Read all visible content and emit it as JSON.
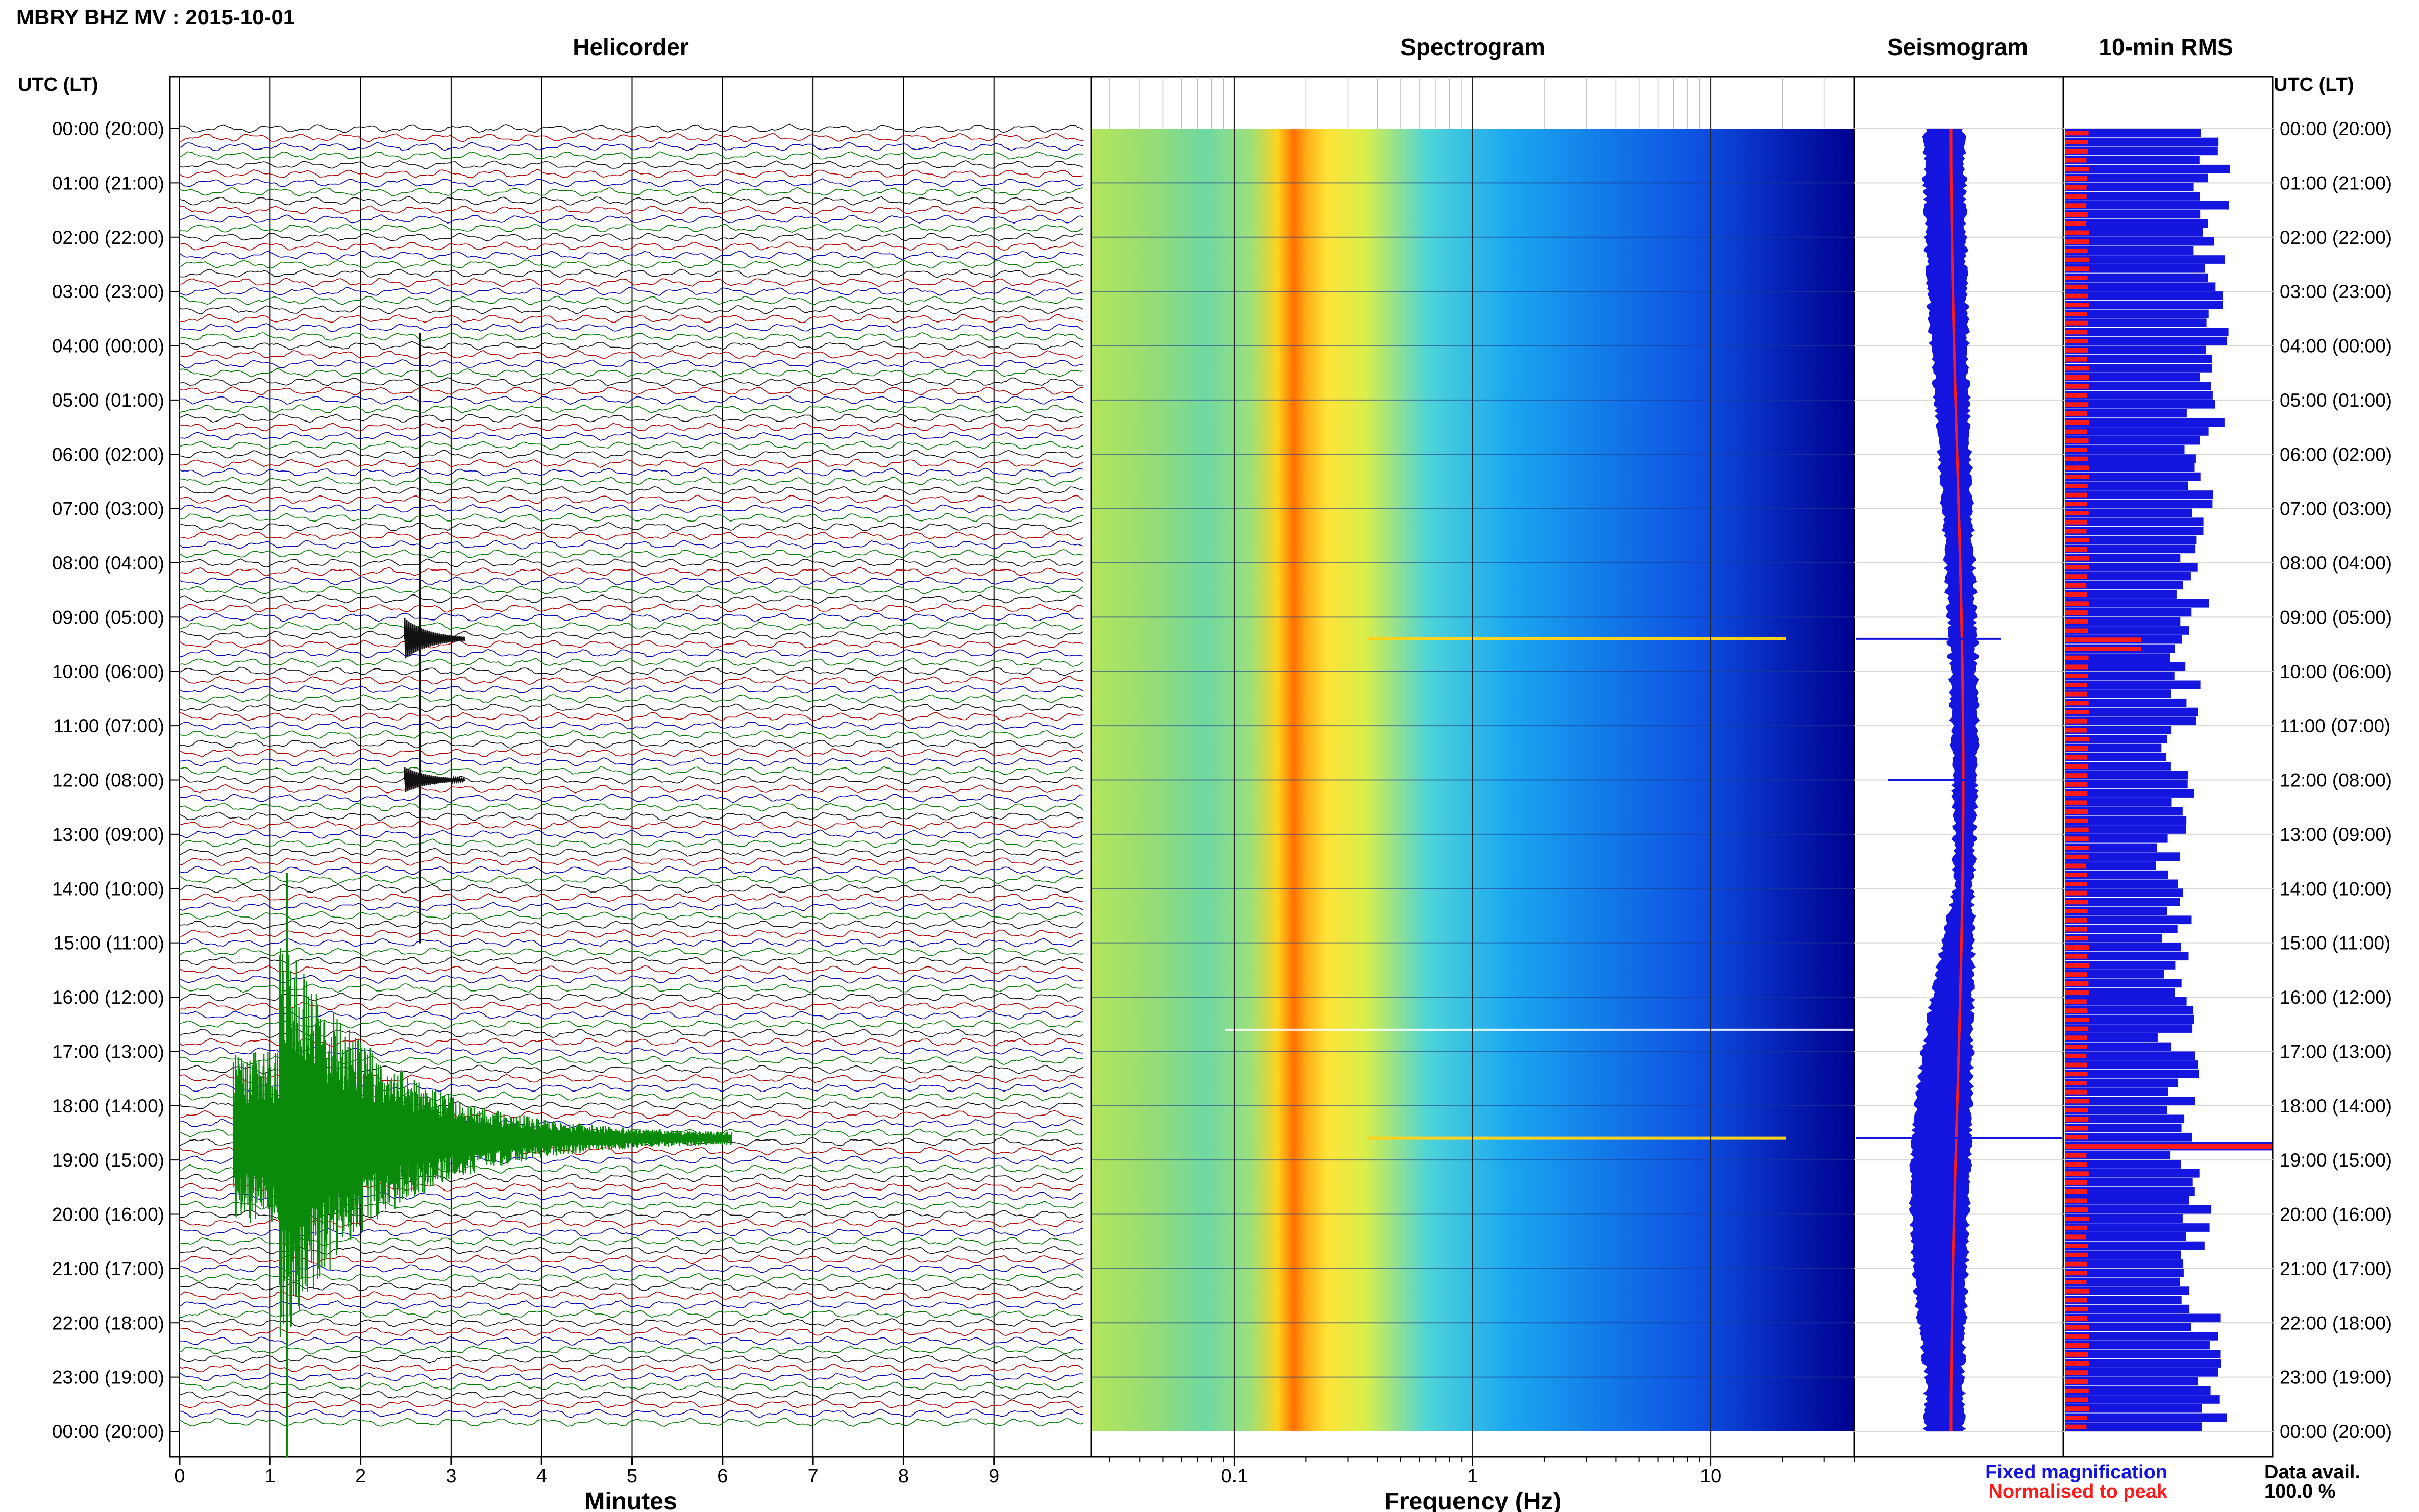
{
  "title": "MBRY BHZ MV : 2015-10-01",
  "panel_titles": {
    "helicorder": "Helicorder",
    "spectrogram": "Spectrogram",
    "seismogram": "Seismogram",
    "rms": "10-min RMS"
  },
  "axis": {
    "time_header": "UTC (LT)",
    "helicorder_xlabel": "Minutes",
    "spectrogram_xlabel": "Frequency (Hz)"
  },
  "legend": {
    "fixed": "Fixed magnification",
    "normalised": "Normalised to peak",
    "fixed_color": "#1515e0",
    "normalised_color": "#ff1a1a"
  },
  "data_avail": {
    "label": "Data avail.",
    "value": "100.0 %"
  },
  "time_labels": [
    "00:00 (20:00)",
    "01:00 (21:00)",
    "02:00 (22:00)",
    "03:00 (23:00)",
    "04:00 (00:00)",
    "05:00 (01:00)",
    "06:00 (02:00)",
    "07:00 (03:00)",
    "08:00 (04:00)",
    "09:00 (05:00)",
    "10:00 (06:00)",
    "11:00 (07:00)",
    "12:00 (08:00)",
    "13:00 (09:00)",
    "14:00 (10:00)",
    "15:00 (11:00)",
    "16:00 (12:00)",
    "17:00 (13:00)",
    "18:00 (14:00)",
    "19:00 (15:00)",
    "20:00 (16:00)",
    "21:00 (17:00)",
    "22:00 (18:00)",
    "23:00 (19:00)",
    "00:00 (20:00)"
  ],
  "chart_data": {
    "type": "helicorder",
    "station": "MBRY BHZ MV",
    "date": "2015-10-01",
    "helicorder": {
      "x_ticks": [
        "0",
        "1",
        "2",
        "3",
        "4",
        "5",
        "6",
        "7",
        "8",
        "9"
      ],
      "xlim": [
        0,
        10
      ],
      "xlabel": "Minutes",
      "trace_colors": [
        "#111111",
        "#b00000",
        "#0000b0",
        "#007a00"
      ],
      "traces": 144,
      "events": [
        {
          "hour": 9.4,
          "minute": 2.6,
          "amplitude": "large"
        },
        {
          "hour": 12.0,
          "minute": 2.6,
          "amplitude": "medium"
        },
        {
          "hour": 18.6,
          "minute": 1.1,
          "amplitude": "very large",
          "duration_min": 5
        }
      ]
    },
    "spectrogram": {
      "x_scale": "log",
      "x_ticks": [
        "0.1",
        "1",
        "10"
      ],
      "xlim": [
        0.025,
        40
      ],
      "xlabel": "Frequency (Hz)",
      "dominant_band_hz": 0.2
    },
    "rms": {
      "series": [
        {
          "name": "Fixed magnification",
          "color": "#1515e0"
        },
        {
          "name": "Normalised to peak",
          "color": "#ff1a1a"
        }
      ]
    }
  }
}
